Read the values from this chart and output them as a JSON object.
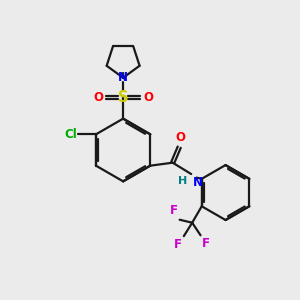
{
  "bg_color": "#ebebeb",
  "bond_color": "#1a1a1a",
  "N_color": "#0000ff",
  "O_color": "#ff0000",
  "S_color": "#cccc00",
  "Cl_color": "#00aa00",
  "F_color": "#cc00cc",
  "H_color": "#008080",
  "figsize": [
    3.0,
    3.0
  ],
  "dpi": 100,
  "lw": 1.6,
  "fs": 8.5,
  "xlim": [
    0,
    10
  ],
  "ylim": [
    0,
    10
  ]
}
